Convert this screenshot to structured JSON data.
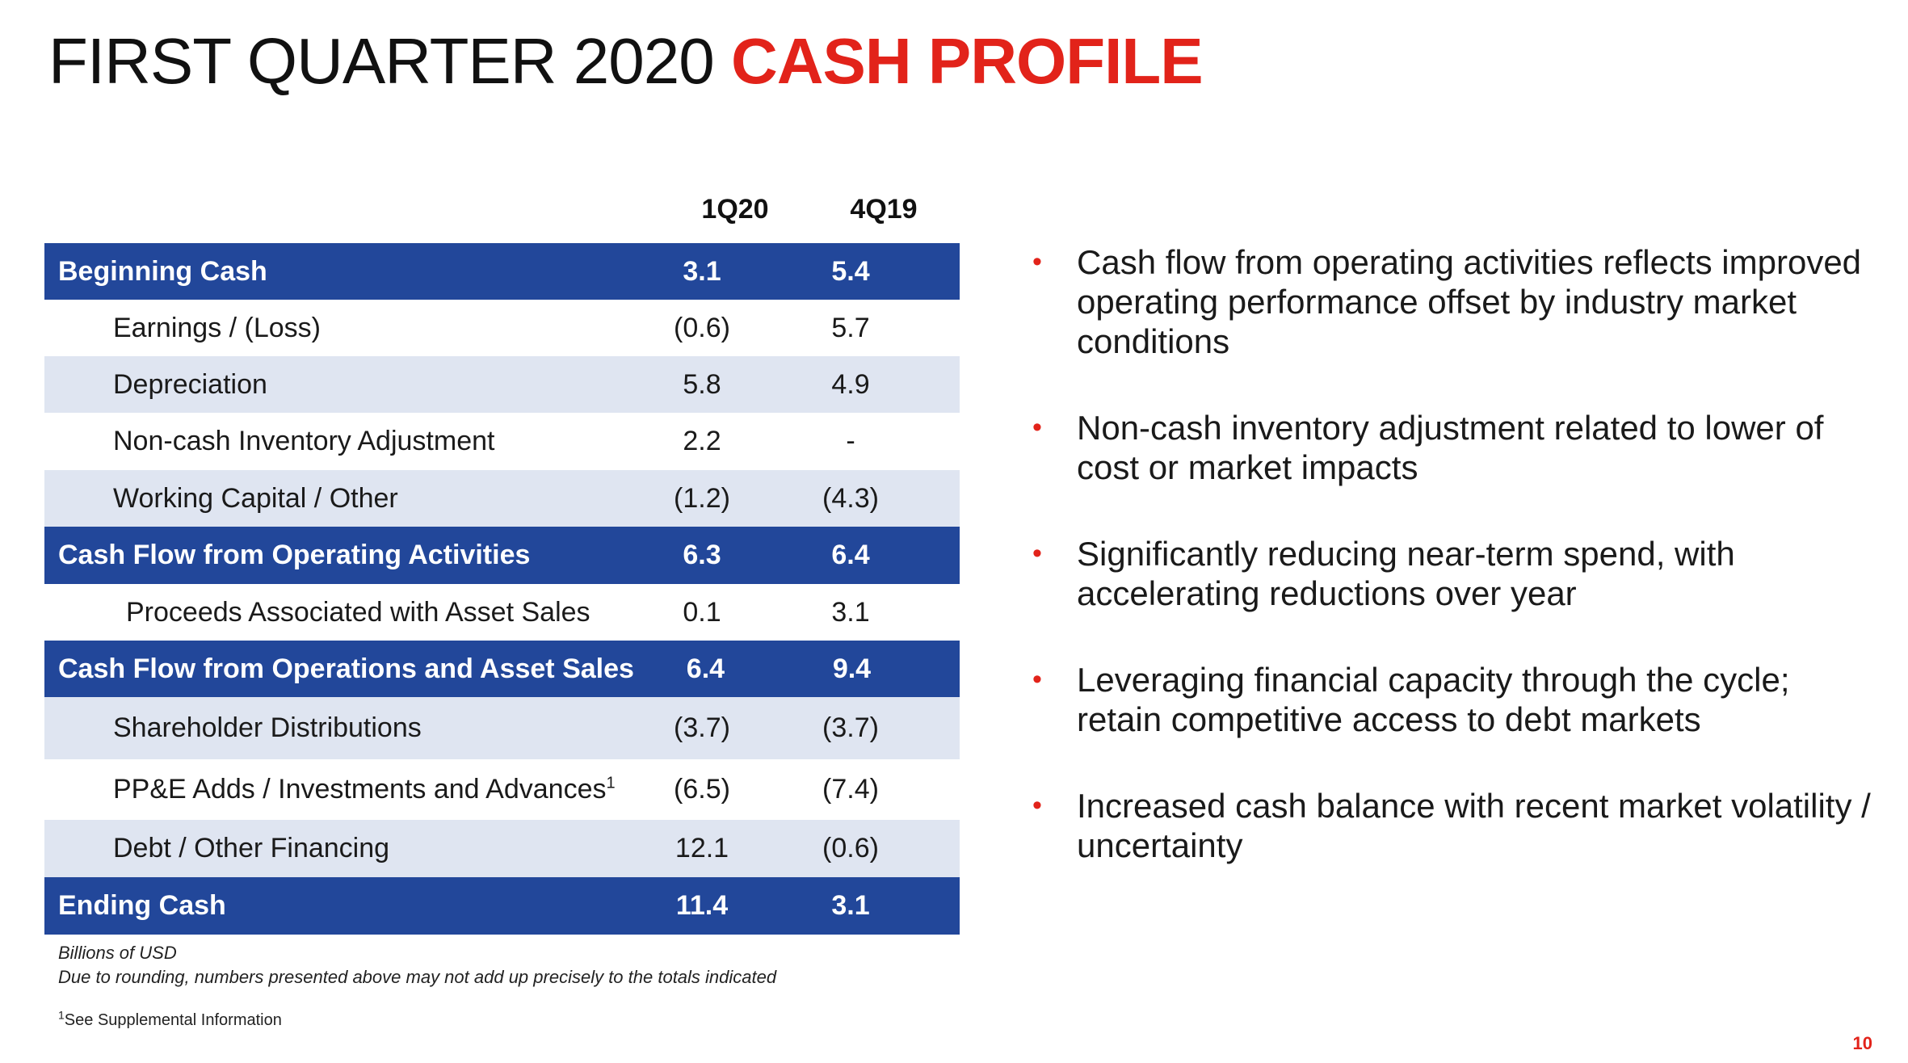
{
  "title": {
    "prefix": "FIRST QUARTER 2020",
    "accent": "CASH PROFILE"
  },
  "table": {
    "columns": [
      "1Q20",
      "4Q19"
    ],
    "rows": [
      {
        "label": "Beginning Cash",
        "v1": "3.1",
        "v2": "5.4"
      },
      {
        "label": "Earnings / (Loss)",
        "v1": "(0.6)",
        "v2": "5.7"
      },
      {
        "label": "Depreciation",
        "v1": "5.8",
        "v2": "4.9"
      },
      {
        "label": "Non-cash Inventory Adjustment",
        "v1": "2.2",
        "v2": "-"
      },
      {
        "label": "Working Capital / Other",
        "v1": "(1.2)",
        "v2": "(4.3)"
      },
      {
        "label": "Cash Flow from Operating Activities",
        "v1": "6.3",
        "v2": "6.4"
      },
      {
        "label": "Proceeds Associated with Asset Sales",
        "v1": "0.1",
        "v2": "3.1"
      },
      {
        "label": "Cash Flow from Operations and Asset Sales",
        "v1": "6.4",
        "v2": "9.4"
      },
      {
        "label": "Shareholder Distributions",
        "v1": "(3.7)",
        "v2": "(3.7)"
      },
      {
        "label": "PP&E Adds / Investments and Advances",
        "sup": "1",
        "v1": "(6.5)",
        "v2": "(7.4)"
      },
      {
        "label": "Debt / Other Financing",
        "v1": "12.1",
        "v2": "(0.6)"
      },
      {
        "label": "Ending Cash",
        "v1": "11.4",
        "v2": "3.1"
      }
    ]
  },
  "notes": {
    "units": "Billions of USD",
    "rounding": "Due to rounding, numbers presented above may not add up precisely to the totals indicated",
    "footnote_marker": "1",
    "footnote_text": "See Supplemental Information"
  },
  "bullets": [
    "Cash flow from operating activities reflects improved operating performance offset by industry market conditions",
    "Non-cash inventory adjustment related to lower of cost or market impacts",
    "Significantly reducing near-term spend, with accelerating reductions over year",
    "Leveraging financial capacity through the cycle; retain competitive access to debt markets",
    "Increased cash balance with recent market volatility / uncertainty"
  ],
  "bullet_glyph": "•",
  "page_number": "10",
  "colors": {
    "accent": "#e2231a",
    "table_total": "#22479a",
    "table_light": "#dfe5f1"
  }
}
